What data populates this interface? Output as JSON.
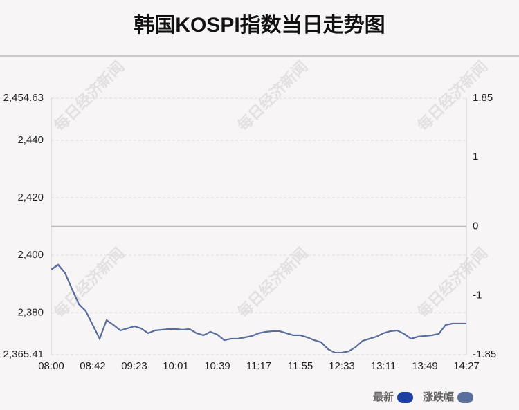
{
  "chart_data": {
    "type": "line",
    "title": "韩国KOSPI指数当日走势图",
    "watermark": "每日经济新闻",
    "categories": [
      "08:00",
      null,
      null,
      null,
      null,
      null,
      "08:42",
      null,
      null,
      null,
      null,
      null,
      "09:23",
      null,
      null,
      null,
      null,
      null,
      "10:01",
      null,
      null,
      null,
      null,
      null,
      "10:39",
      null,
      null,
      null,
      null,
      null,
      "11:17",
      null,
      null,
      null,
      null,
      null,
      "11:55",
      null,
      null,
      null,
      null,
      null,
      "12:33",
      null,
      null,
      null,
      null,
      null,
      "13:11",
      null,
      null,
      null,
      null,
      null,
      "13:49",
      null,
      null,
      null,
      null,
      null,
      "14:27"
    ],
    "series": [
      {
        "name": "最新",
        "color": "#1b3fa3",
        "axis": "y",
        "values": [
          2394.99,
          2396.67,
          2393.78,
          2388.25,
          2382.96,
          2380.56,
          2375.75,
          2370.94,
          2377.43,
          2375.75,
          2373.82,
          2374.54,
          2375.27,
          2374.54,
          2372.86,
          2373.82,
          2374.06,
          2374.3,
          2374.3,
          2374.06,
          2374.3,
          2372.86,
          2372.14,
          2373.34,
          2372.38,
          2370.45,
          2370.94,
          2370.94,
          2371.42,
          2371.9,
          2372.86,
          2373.34,
          2373.58,
          2373.58,
          2372.86,
          2372.14,
          2372.14,
          2371.42,
          2370.45,
          2369.73,
          2367.33,
          2366.13,
          2366.13,
          2366.61,
          2368.05,
          2370.21,
          2370.94,
          2371.66,
          2372.86,
          2373.58,
          2373.82,
          2372.62,
          2370.94,
          2371.66,
          2371.9,
          2372.14,
          2372.62,
          2375.75,
          2376.23,
          2376.23,
          2376.23
        ]
      },
      {
        "name": "涨跌幅",
        "color": "#5a6f9c",
        "axis": "y2",
        "values": [
          -0.62,
          -0.55,
          -0.67,
          -0.9,
          -1.12,
          -1.22,
          -1.42,
          -1.62,
          -1.35,
          -1.42,
          -1.5,
          -1.47,
          -1.44,
          -1.47,
          -1.54,
          -1.5,
          -1.49,
          -1.48,
          -1.48,
          -1.49,
          -1.48,
          -1.54,
          -1.57,
          -1.52,
          -1.56,
          -1.64,
          -1.62,
          -1.62,
          -1.6,
          -1.58,
          -1.54,
          -1.52,
          -1.51,
          -1.51,
          -1.54,
          -1.57,
          -1.57,
          -1.6,
          -1.64,
          -1.67,
          -1.77,
          -1.82,
          -1.82,
          -1.8,
          -1.74,
          -1.65,
          -1.62,
          -1.59,
          -1.54,
          -1.51,
          -1.5,
          -1.55,
          -1.62,
          -1.59,
          -1.58,
          -1.57,
          -1.55,
          -1.42,
          -1.4,
          -1.4,
          -1.4
        ]
      }
    ],
    "ylim": [
      2365.41,
      2454.63
    ],
    "yticks": [
      {
        "value": 2365.41,
        "label": "2,365.41"
      },
      {
        "value": 2380,
        "label": "2,380"
      },
      {
        "value": 2400,
        "label": "2,400"
      },
      {
        "value": 2420,
        "label": "2,420"
      },
      {
        "value": 2440,
        "label": "2,440"
      },
      {
        "value": 2454.63,
        "label": "2,454.63"
      }
    ],
    "y2lim": [
      -1.85,
      1.85
    ],
    "y2ticks": [
      -1.85,
      -1,
      0,
      1,
      1.85
    ],
    "grid": true,
    "legend": "bottom-right"
  }
}
